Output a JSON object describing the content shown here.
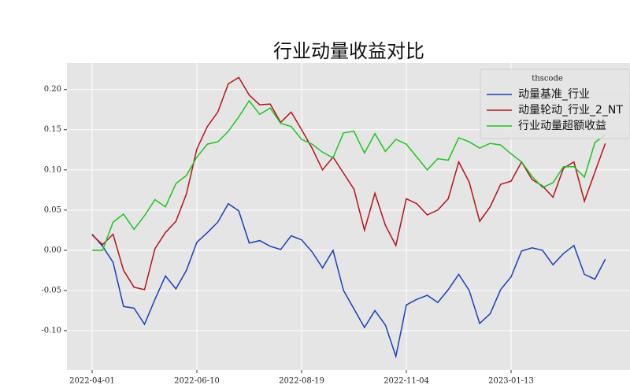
{
  "chart_data": {
    "type": "line",
    "title": "行业动量收益对比",
    "categories": [
      "2022-04-01",
      null,
      null,
      null,
      null,
      null,
      null,
      null,
      null,
      null,
      "2022-06-10",
      null,
      null,
      null,
      null,
      null,
      null,
      null,
      null,
      null,
      "2022-08-19",
      null,
      null,
      null,
      null,
      null,
      null,
      null,
      null,
      null,
      "2022-11-04",
      null,
      null,
      null,
      null,
      null,
      null,
      null,
      null,
      null,
      "2023-01-13",
      null,
      null,
      null,
      null,
      null,
      null,
      null,
      null,
      null
    ],
    "series": [
      {
        "name": "动量基准_行业",
        "color": "#1a3fb8",
        "values": [
          0.02,
          0.005,
          -0.015,
          -0.07,
          -0.072,
          -0.092,
          -0.061,
          -0.032,
          -0.048,
          -0.025,
          0.01,
          0.022,
          0.035,
          0.058,
          0.049,
          0.009,
          0.012,
          0.005,
          0.001,
          0.018,
          0.013,
          -0.002,
          -0.022,
          0.0,
          -0.05,
          -0.073,
          -0.096,
          -0.075,
          -0.093,
          -0.132,
          -0.068,
          -0.061,
          -0.056,
          -0.065,
          -0.049,
          -0.03,
          -0.05,
          -0.091,
          -0.079,
          -0.049,
          -0.033,
          -0.001,
          0.003,
          0.0,
          -0.018,
          -0.004,
          0.006,
          -0.03,
          -0.036,
          -0.011
        ]
      },
      {
        "name": "动量轮动_行业_2_NT",
        "color": "#b51218",
        "values": [
          0.019,
          0.007,
          0.02,
          -0.025,
          -0.046,
          -0.049,
          0.002,
          0.022,
          0.036,
          0.07,
          0.126,
          0.154,
          0.172,
          0.207,
          0.215,
          0.193,
          0.181,
          0.182,
          0.159,
          0.172,
          0.15,
          0.127,
          0.1,
          0.116,
          0.096,
          0.076,
          0.025,
          0.071,
          0.031,
          0.006,
          0.064,
          0.058,
          0.044,
          0.05,
          0.064,
          0.11,
          0.085,
          0.036,
          0.054,
          0.082,
          0.086,
          0.11,
          0.088,
          0.08,
          0.066,
          0.102,
          0.11,
          0.061,
          0.097,
          0.133
        ]
      },
      {
        "name": "行业动量超额收益",
        "color": "#1fc41f",
        "values": [
          0.0,
          0.0,
          0.035,
          0.045,
          0.026,
          0.043,
          0.063,
          0.054,
          0.083,
          0.093,
          0.116,
          0.132,
          0.135,
          0.148,
          0.166,
          0.186,
          0.169,
          0.177,
          0.158,
          0.154,
          0.138,
          0.132,
          0.122,
          0.115,
          0.146,
          0.148,
          0.121,
          0.145,
          0.123,
          0.138,
          0.132,
          0.116,
          0.1,
          0.114,
          0.112,
          0.14,
          0.135,
          0.127,
          0.133,
          0.131,
          0.12,
          0.11,
          0.092,
          0.078,
          0.084,
          0.104,
          0.104,
          0.091,
          0.134,
          0.144
        ]
      }
    ],
    "legend_title": "thscode",
    "legend": "upper right",
    "ylim": [
      -0.149,
      0.233
    ],
    "yticks": [
      {
        "value": -0.1,
        "label": "-0.10"
      },
      {
        "value": -0.05,
        "label": "-0.05"
      },
      {
        "value": 0,
        "label": "0.00"
      },
      {
        "value": 0.05,
        "label": "0.05"
      },
      {
        "value": 0.1,
        "label": "0.10"
      },
      {
        "value": 0.15,
        "label": "0.15"
      },
      {
        "value": 0.2,
        "label": "0.20"
      }
    ],
    "grid": true
  }
}
